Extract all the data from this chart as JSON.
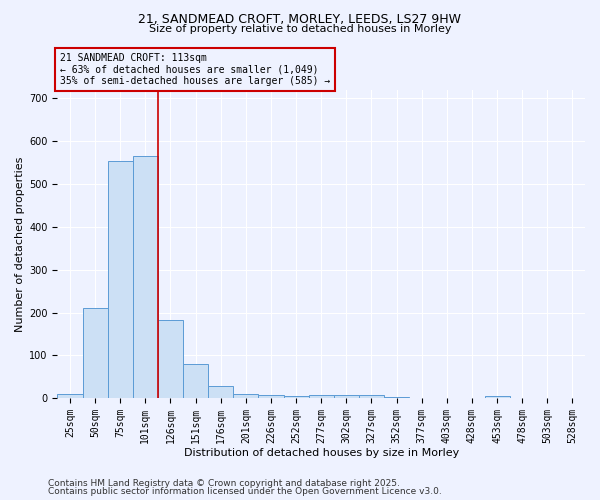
{
  "title_line1": "21, SANDMEAD CROFT, MORLEY, LEEDS, LS27 9HW",
  "title_line2": "Size of property relative to detached houses in Morley",
  "xlabel": "Distribution of detached houses by size in Morley",
  "ylabel": "Number of detached properties",
  "bar_color": "#cce0f5",
  "bar_edge_color": "#5b9bd5",
  "vline_color": "#cc0000",
  "vline_position": 3.5,
  "annotation_text": "21 SANDMEAD CROFT: 113sqm\n← 63% of detached houses are smaller (1,049)\n35% of semi-detached houses are larger (585) →",
  "annotation_box_color": "#cc0000",
  "footer_line1": "Contains HM Land Registry data © Crown copyright and database right 2025.",
  "footer_line2": "Contains public sector information licensed under the Open Government Licence v3.0.",
  "categories": [
    "25sqm",
    "50sqm",
    "75sqm",
    "101sqm",
    "126sqm",
    "151sqm",
    "176sqm",
    "201sqm",
    "226sqm",
    "252sqm",
    "277sqm",
    "302sqm",
    "327sqm",
    "352sqm",
    "377sqm",
    "403sqm",
    "428sqm",
    "453sqm",
    "478sqm",
    "503sqm",
    "528sqm"
  ],
  "values": [
    10,
    211,
    554,
    565,
    182,
    80,
    28,
    11,
    9,
    5,
    7,
    8,
    7,
    3,
    0,
    0,
    0,
    5,
    0,
    0,
    0
  ],
  "ylim": [
    0,
    720
  ],
  "yticks": [
    0,
    100,
    200,
    300,
    400,
    500,
    600,
    700
  ],
  "background_color": "#eef2ff",
  "grid_color": "#ffffff",
  "title1_fontsize": 9,
  "title2_fontsize": 8,
  "xlabel_fontsize": 8,
  "ylabel_fontsize": 8,
  "tick_fontsize": 7,
  "ann_fontsize": 7,
  "footer_fontsize": 6.5
}
